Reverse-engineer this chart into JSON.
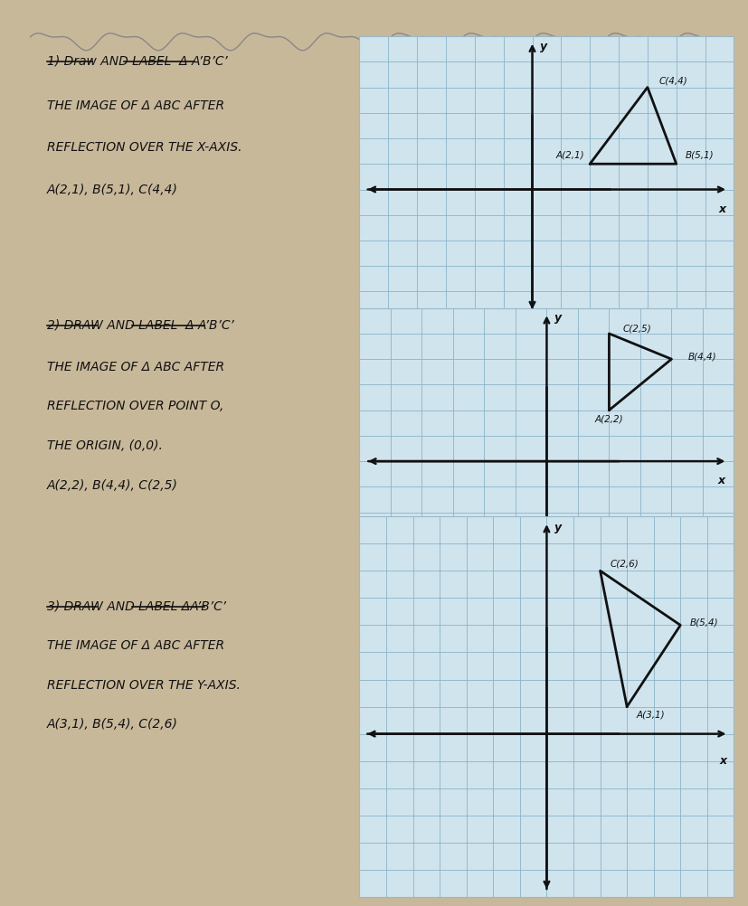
{
  "outer_bg": "#c8b89a",
  "paper_color": "#f0ede8",
  "grid_bg": "#d0e4ee",
  "grid_line_color": "#8ab4c8",
  "axis_color": "#111111",
  "tri_color": "#111111",
  "label_color": "#111111",
  "p1": {
    "A": [
      2,
      1
    ],
    "B": [
      5,
      1
    ],
    "C": [
      4,
      4
    ],
    "xmin": -6,
    "xmax": 7,
    "ymin": -5,
    "ymax": 6
  },
  "p2": {
    "A": [
      2,
      2
    ],
    "B": [
      4,
      4
    ],
    "C": [
      2,
      5
    ],
    "xmin": -6,
    "xmax": 6,
    "ymin": -5,
    "ymax": 6
  },
  "p3": {
    "A": [
      3,
      1
    ],
    "B": [
      5,
      4
    ],
    "C": [
      2,
      6
    ],
    "xmin": -7,
    "xmax": 7,
    "ymin": -6,
    "ymax": 8
  },
  "wavy_color": "#c0c0c0",
  "torn_color": "#e8e4de"
}
